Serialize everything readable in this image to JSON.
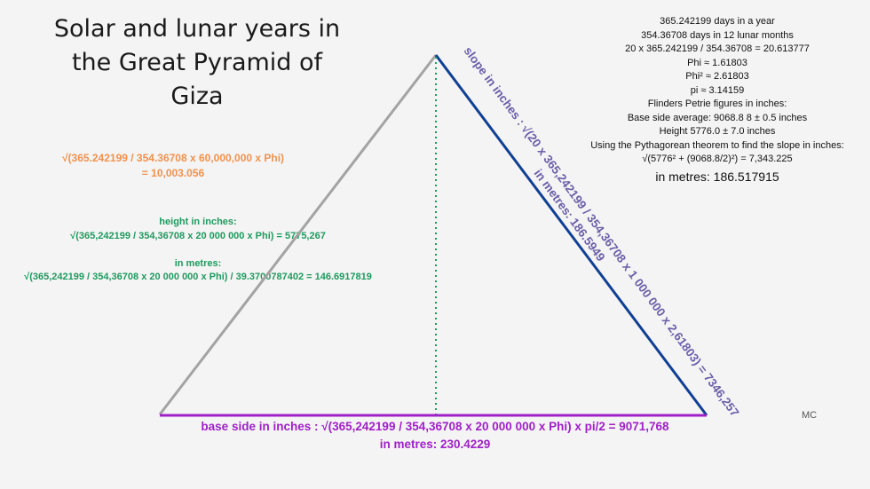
{
  "title": {
    "line1": "Solar and lunar years in",
    "line2": "the Great Pyramid of",
    "line3": "Giza"
  },
  "orange_formula": {
    "line1": "√(365.242199 / 354.36708 x 60,000,000 x Phi)",
    "line2": "= 10,003.056"
  },
  "green_formula": {
    "height_label": "height in inches:",
    "height_eq": "√(365,242199 / 354,36708 x 20 000 000 x Phi) = 5775,267",
    "metres_label": "in metres:",
    "metres_eq": "√(365,242199 / 354,36708 x 20 000 000 x Phi) / 39.3700787402 = 146.6917819"
  },
  "info": {
    "l1": "365.242199 days in a year",
    "l2": "354.36708 days in 12 lunar months",
    "l3": "20 x 365.242199 / 354.36708 = 20.613777",
    "l4": "Phi ≈ 1.61803",
    "l5": "Phi² ≈ 2.61803",
    "l6": "pi ≈ 3.14159",
    "l7": "Flinders Petrie figures in inches:",
    "l8": "Base side average: 9068.8 8 ± 0.5 inches",
    "l9": "Height 5776.0 ± 7.0 inches",
    "l10": "Using the Pythagorean theorem to find the slope in inches:",
    "l11": "√(5776² + (9068.8/2)²) = 7,343.225",
    "l12": "in metres: 186.517915"
  },
  "slope": {
    "line1": "slope in inches : √(20 x 365,242199 / 354,36708 x 1 000 000 x 2,61803) = 7346,257",
    "line2": "in metres: 186.5949"
  },
  "base": {
    "line1": "base side in inches : √(365,242199 / 354,36708 x 20 000 000 x Phi) x pi/2 = 9071,768",
    "line2": "in metres: 230.4229"
  },
  "signature": "MC",
  "colors": {
    "left_edge": "#a3a3a3",
    "right_edge": "#103f94",
    "height_line": "#1f9a5e",
    "base_line": "#a020c8",
    "orange_text": "#f0924e",
    "slope_text": "#6b5ea8"
  }
}
